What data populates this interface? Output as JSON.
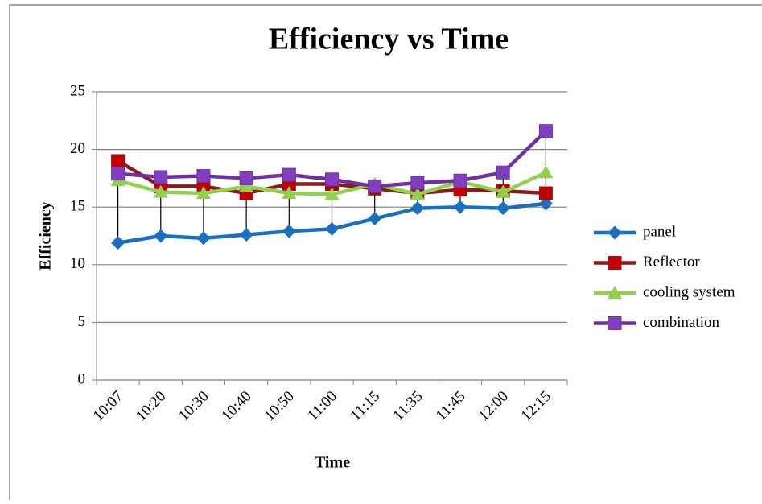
{
  "chart_data": {
    "type": "line",
    "title": "Efficiency vs Time",
    "x_label": "Time",
    "y_label": "Efficiency",
    "categories": [
      "10:07",
      "10:20",
      "10:30",
      "10:40",
      "10:50",
      "11:00",
      "11:15",
      "11:35",
      "11:45",
      "12:00",
      "12:15"
    ],
    "series": [
      {
        "name": "panel",
        "color": "#1a6fbf",
        "values": [
          11.9,
          12.5,
          12.3,
          12.6,
          12.9,
          13.1,
          14.0,
          14.9,
          15.0,
          14.9,
          15.3
        ]
      },
      {
        "name": "Reflector",
        "color": "#8b1a1a",
        "values": [
          19.0,
          16.8,
          16.8,
          16.2,
          17.0,
          17.0,
          16.6,
          16.2,
          16.5,
          16.4,
          16.2
        ]
      },
      {
        "name": "cooling system",
        "color": "#92d050",
        "values": [
          17.3,
          16.3,
          16.2,
          16.8,
          16.2,
          16.1,
          17.0,
          16.1,
          17.2,
          16.3,
          18.0
        ]
      },
      {
        "name": "combination",
        "color": "#7030a0",
        "values": [
          17.9,
          17.6,
          17.7,
          17.5,
          17.8,
          17.4,
          16.8,
          17.1,
          17.3,
          18.0,
          21.6
        ]
      }
    ],
    "ylim": [
      0,
      25
    ],
    "yticks": [
      0,
      5,
      10,
      15,
      20,
      25
    ],
    "grid": true,
    "legend": "right",
    "high_low_lines": true
  }
}
